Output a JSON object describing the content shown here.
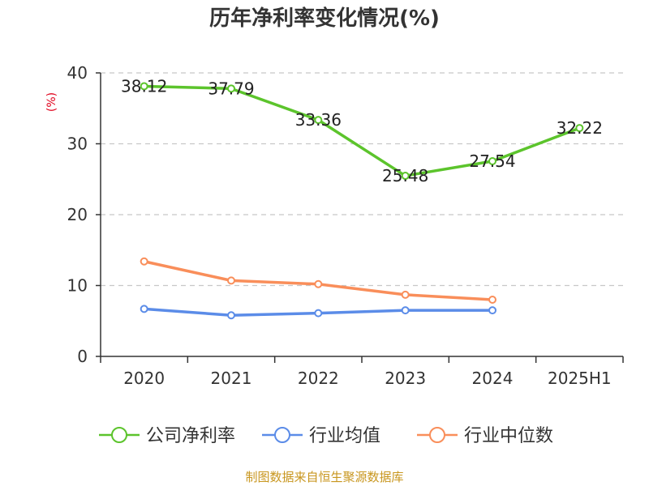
{
  "chart_data": {
    "type": "line",
    "title": "历年净利率变化情况(%)",
    "ylabel": "(%)",
    "xlabel": "",
    "categories": [
      "2020",
      "2021",
      "2022",
      "2023",
      "2024",
      "2025H1"
    ],
    "ylim": [
      0,
      40
    ],
    "yticks": [
      0,
      10,
      20,
      30,
      40
    ],
    "grid": true,
    "legend_position": "bottom",
    "series": [
      {
        "name": "公司净利率",
        "color": "#5cc42c",
        "values": [
          38.12,
          37.79,
          33.36,
          25.48,
          27.54,
          32.22
        ],
        "labels": [
          "38.12",
          "37.79",
          "33.36",
          "25.48",
          "27.54",
          "32.22"
        ]
      },
      {
        "name": "行业均值",
        "color": "#5b8ce8",
        "values": [
          6.7,
          5.8,
          6.1,
          6.5,
          6.5,
          null
        ]
      },
      {
        "name": "行业中位数",
        "color": "#f98e5a",
        "values": [
          13.4,
          10.7,
          10.2,
          8.7,
          8.0,
          null
        ]
      }
    ]
  },
  "footer": {
    "source": "制图数据来自恒生聚源数据库"
  }
}
